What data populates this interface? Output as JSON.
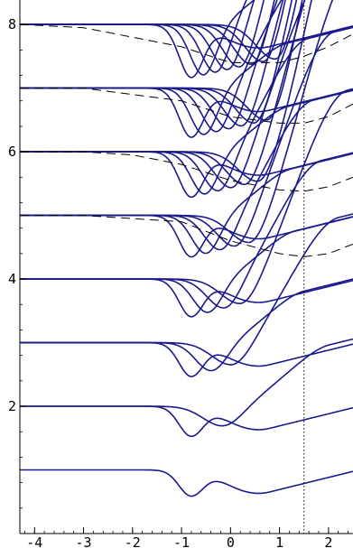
{
  "chart_data": {
    "type": "line",
    "title": "",
    "xlabel": "",
    "ylabel": "",
    "xlim": [
      -4.3,
      2.5
    ],
    "ylim": [
      0,
      8.3
    ],
    "x_ticks": [
      -4,
      -3,
      -2,
      -1,
      0,
      1,
      2
    ],
    "x_tick_labels": [
      "-4",
      "-3",
      "-2",
      "-1",
      "0",
      "1",
      "2"
    ],
    "y_ticks": [
      2,
      4,
      6,
      8
    ],
    "y_tick_labels": [
      "2",
      "4",
      "6",
      "8"
    ],
    "vertical_reference_line": {
      "x": 1.5,
      "style": "dotted"
    },
    "grid": false,
    "legend": "none",
    "series_color": "#1a1a8c",
    "dashed_color": "#000000",
    "solid_curve_params": {
      "dip_center_range": [
        -0.8,
        1.0
      ],
      "dip_depth_scale": 0.75,
      "dip_width": 0.35,
      "rise_slope_right": 1.9,
      "curves_per_level": 9
    },
    "baseline_levels": [
      1,
      2,
      3,
      4,
      5,
      6,
      7,
      8
    ],
    "dashed_curves": [
      {
        "x": [
          -4.3,
          -3.0,
          -2.0,
          -1.0,
          0.0,
          1.0,
          1.5,
          2.0,
          2.5
        ],
        "y": [
          5.0,
          5.0,
          4.95,
          4.9,
          4.6,
          4.4,
          4.35,
          4.4,
          4.55
        ]
      },
      {
        "x": [
          -4.3,
          -3.0,
          -2.0,
          -1.0,
          0.0,
          1.0,
          1.5,
          2.0,
          2.5
        ],
        "y": [
          6.0,
          6.0,
          5.95,
          5.8,
          5.55,
          5.4,
          5.38,
          5.45,
          5.6
        ]
      },
      {
        "x": [
          -4.3,
          -3.0,
          -2.0,
          -1.0,
          0.0,
          1.0,
          1.5,
          2.0,
          2.5
        ],
        "y": [
          7.0,
          7.0,
          6.9,
          6.8,
          6.55,
          6.45,
          6.45,
          6.55,
          6.75
        ]
      },
      {
        "x": [
          -4.3,
          -3.0,
          -2.0,
          -1.0,
          0.0,
          1.0,
          1.5,
          2.0,
          2.5
        ],
        "y": [
          8.0,
          7.95,
          7.8,
          7.65,
          7.4,
          7.4,
          7.5,
          7.65,
          7.85
        ]
      }
    ]
  }
}
